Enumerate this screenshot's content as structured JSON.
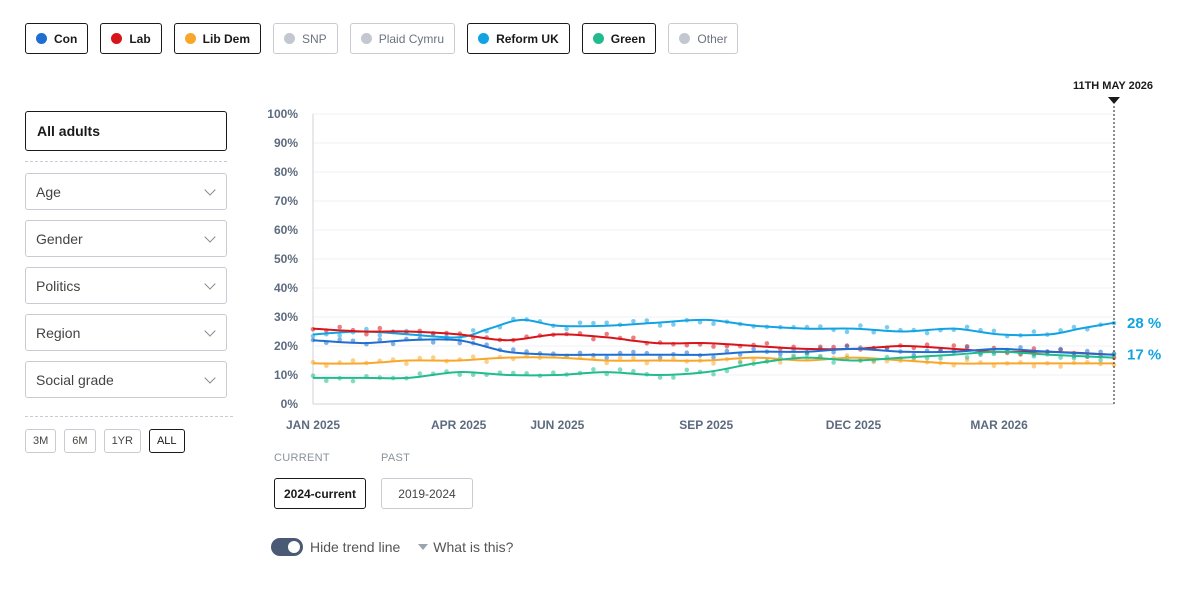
{
  "parties": [
    {
      "label": "Con",
      "color": "#1f6fd0",
      "active": true
    },
    {
      "label": "Lab",
      "color": "#d7141a",
      "active": true
    },
    {
      "label": "Lib Dem",
      "color": "#f9a72b",
      "active": true
    },
    {
      "label": "SNP",
      "color": "#c3c8d0",
      "active": false
    },
    {
      "label": "Plaid Cymru",
      "color": "#c3c8d0",
      "active": false
    },
    {
      "label": "Reform UK",
      "color": "#12a3e3",
      "active": true
    },
    {
      "label": "Green",
      "color": "#21bb8d",
      "active": true
    },
    {
      "label": "Other",
      "color": "#c3c8d0",
      "active": false
    }
  ],
  "filters": {
    "all_adults": "All adults",
    "dropdowns": [
      "Age",
      "Gender",
      "Politics",
      "Region",
      "Social grade"
    ]
  },
  "ranges": [
    {
      "label": "3M",
      "active": false
    },
    {
      "label": "6M",
      "active": false
    },
    {
      "label": "1YR",
      "active": false
    },
    {
      "label": "ALL",
      "active": true
    }
  ],
  "period": {
    "current_heading": "CURRENT",
    "past_heading": "PAST",
    "current_label": "2024-current",
    "past_label": "2019-2024"
  },
  "trend": {
    "toggle_label": "Hide trend line",
    "toggle_on": true,
    "help_label": "What is this?"
  },
  "chart_data": {
    "type": "line",
    "x_domain": [
      "2025-01-01",
      "2026-05-11"
    ],
    "x_ticks": [
      {
        "label": "JAN 2025",
        "date": "2025-01-01"
      },
      {
        "label": "APR 2025",
        "date": "2025-04-01"
      },
      {
        "label": "JUN 2025",
        "date": "2025-06-01"
      },
      {
        "label": "SEP 2025",
        "date": "2025-09-01"
      },
      {
        "label": "DEC 2025",
        "date": "2025-12-01"
      },
      {
        "label": "MAR 2026",
        "date": "2026-03-01"
      }
    ],
    "y_ticks": [
      "0%",
      "10%",
      "20%",
      "30%",
      "40%",
      "50%",
      "60%",
      "70%",
      "80%",
      "90%",
      "100%"
    ],
    "ylim": [
      0,
      100
    ],
    "grid": true,
    "marker": {
      "label": "11TH MAY 2026",
      "date": "2026-05-11"
    },
    "end_labels": [
      {
        "text": "28 %",
        "value": 28,
        "color": "#12a3e3"
      },
      {
        "text": "17 %",
        "value": 17,
        "color": "#12a3e3"
      }
    ],
    "series": [
      {
        "party": "Reform UK",
        "color": "#12a3e3",
        "dates": [
          "2025-01-01",
          "2025-02-01",
          "2025-03-01",
          "2025-04-01",
          "2025-04-20",
          "2025-05-10",
          "2025-06-01",
          "2025-07-01",
          "2025-08-01",
          "2025-09-01",
          "2025-10-01",
          "2025-11-01",
          "2025-12-01",
          "2026-01-01",
          "2026-02-01",
          "2026-03-01",
          "2026-04-01",
          "2026-04-20",
          "2026-05-11"
        ],
        "values": [
          24,
          25,
          24,
          23,
          26,
          29,
          27,
          27,
          28,
          29,
          27,
          26,
          26,
          25,
          26,
          24,
          24,
          26,
          28
        ]
      },
      {
        "party": "Lab",
        "color": "#d7141a",
        "dates": [
          "2025-01-01",
          "2025-02-01",
          "2025-03-01",
          "2025-04-01",
          "2025-05-01",
          "2025-06-01",
          "2025-07-01",
          "2025-08-01",
          "2025-09-01",
          "2025-10-01",
          "2025-11-01",
          "2025-12-01",
          "2026-01-01",
          "2026-02-01",
          "2026-03-01",
          "2026-04-01",
          "2026-05-11"
        ],
        "values": [
          26,
          25,
          25,
          24,
          22,
          24,
          23,
          21,
          21,
          20,
          19,
          19,
          20,
          19,
          18,
          18,
          17
        ]
      },
      {
        "party": "Con",
        "color": "#1f6fd0",
        "dates": [
          "2025-01-01",
          "2025-02-01",
          "2025-03-01",
          "2025-04-01",
          "2025-05-01",
          "2025-06-01",
          "2025-07-01",
          "2025-08-01",
          "2025-09-01",
          "2025-10-01",
          "2025-11-01",
          "2025-12-01",
          "2026-01-01",
          "2026-02-01",
          "2026-03-01",
          "2026-04-01",
          "2026-05-11"
        ],
        "values": [
          22,
          21,
          22,
          22,
          18,
          17,
          17,
          17,
          17,
          18,
          18,
          19,
          18,
          18,
          19,
          18,
          17
        ]
      },
      {
        "party": "Lib Dem",
        "color": "#f9a72b",
        "dates": [
          "2025-01-01",
          "2025-02-01",
          "2025-03-01",
          "2025-04-01",
          "2025-05-01",
          "2025-06-01",
          "2025-07-01",
          "2025-08-01",
          "2025-09-01",
          "2025-10-01",
          "2025-11-01",
          "2025-12-01",
          "2026-01-01",
          "2026-02-01",
          "2026-03-01",
          "2026-04-01",
          "2026-05-11"
        ],
        "values": [
          14,
          14,
          15,
          15,
          16,
          16,
          15,
          15,
          15,
          16,
          15,
          16,
          15,
          14,
          14,
          14,
          14
        ]
      },
      {
        "party": "Green",
        "color": "#21bb8d",
        "dates": [
          "2025-01-01",
          "2025-02-01",
          "2025-03-01",
          "2025-04-01",
          "2025-05-01",
          "2025-06-01",
          "2025-07-01",
          "2025-08-01",
          "2025-09-01",
          "2025-10-01",
          "2025-11-01",
          "2025-12-01",
          "2026-01-01",
          "2026-02-01",
          "2026-03-01",
          "2026-04-01",
          "2026-05-11"
        ],
        "values": [
          9,
          9,
          9,
          11,
          10,
          10,
          11,
          10,
          11,
          14,
          16,
          15,
          16,
          17,
          18,
          17,
          16
        ]
      }
    ]
  }
}
